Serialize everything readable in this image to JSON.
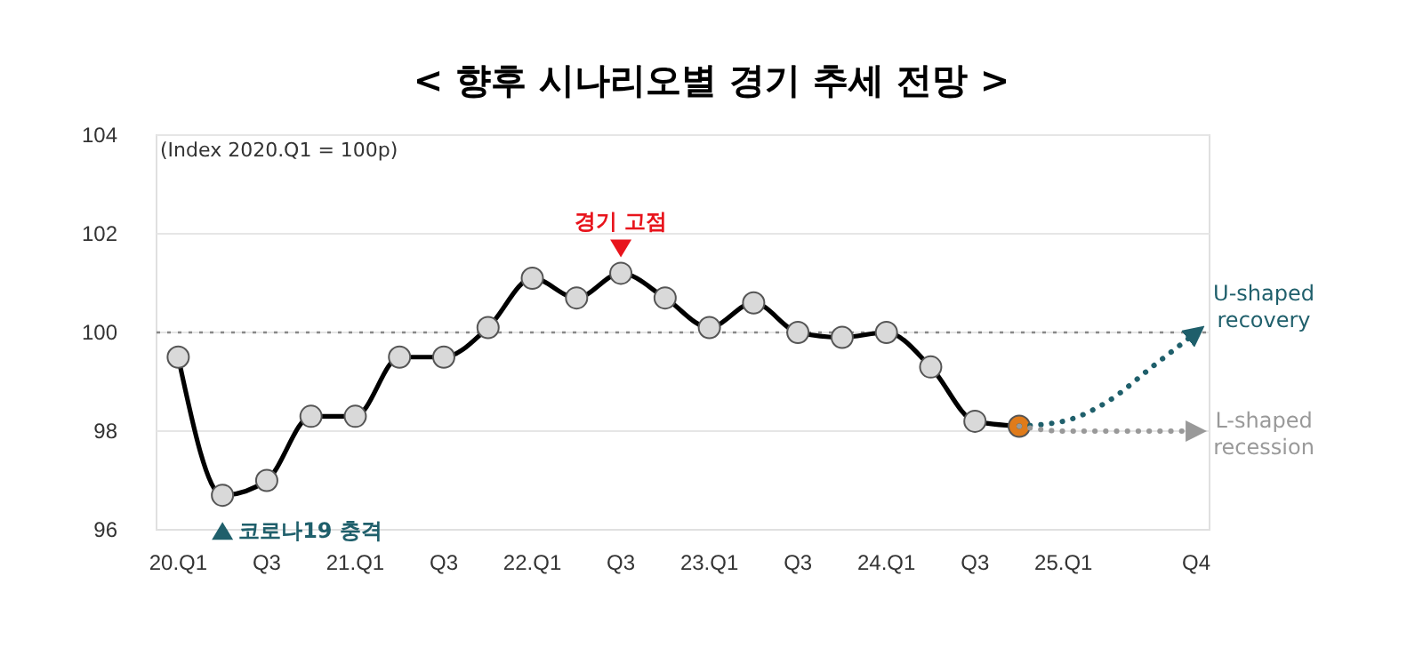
{
  "chart_data": {
    "type": "line",
    "title": "< 향후 시나리오별 경기 추세 전망 >",
    "annotations": [
      "(Index 2020.Q1 = 100p)",
      "경기 고점",
      "코로나19 충격"
    ],
    "categories": [
      "20.Q1",
      null,
      "Q3",
      null,
      "21.Q1",
      null,
      "Q3",
      null,
      "22.Q1",
      null,
      "Q3",
      null,
      "23.Q1",
      null,
      "Q3",
      null,
      "24.Q1",
      null,
      "Q3",
      null,
      "25.Q1",
      null,
      null,
      "Q4"
    ],
    "ylim": [
      96,
      104
    ],
    "yticks": [
      96,
      98,
      100,
      102,
      104
    ],
    "grid": "y",
    "ref_lines": [
      {
        "axis": "y",
        "value": 100,
        "color": "#888888",
        "line_style": "dotted"
      }
    ],
    "series": [
      {
        "color": "#000000",
        "marker": "circle",
        "line_style": "solid",
        "values": [
          99.5,
          96.7,
          97.0,
          98.3,
          98.3,
          99.5,
          99.5,
          100.1,
          101.1,
          100.7,
          101.2,
          100.7,
          100.1,
          100.6,
          100.0,
          99.9,
          100.0,
          99.3,
          98.2,
          98.1,
          null,
          null,
          null,
          null
        ],
        "colors": [
          "#d9d9d9",
          "#d9d9d9",
          "#d9d9d9",
          "#d9d9d9",
          "#d9d9d9",
          "#d9d9d9",
          "#d9d9d9",
          "#d9d9d9",
          "#d9d9d9",
          "#d9d9d9",
          "#d9d9d9",
          "#d9d9d9",
          "#d9d9d9",
          "#d9d9d9",
          "#d9d9d9",
          "#d9d9d9",
          "#d9d9d9",
          "#d9d9d9",
          "#d9d9d9",
          "#e07b1a",
          null,
          null,
          null,
          null
        ]
      },
      {
        "name": "U-shaped recovery",
        "color": "#1f5f6b",
        "marker": "none",
        "line_style": "dotted",
        "values": [
          null,
          null,
          null,
          null,
          null,
          null,
          null,
          null,
          null,
          null,
          null,
          null,
          null,
          null,
          null,
          null,
          null,
          null,
          null,
          98.1,
          98.2,
          98.6,
          99.3,
          100.0
        ]
      },
      {
        "name": "L-shaped recession",
        "color": "#999999",
        "marker": "none",
        "line_style": "dotted",
        "values": [
          null,
          null,
          null,
          null,
          null,
          null,
          null,
          null,
          null,
          null,
          null,
          null,
          null,
          null,
          null,
          null,
          null,
          null,
          null,
          98.1,
          98.0,
          98.0,
          98.0,
          98.0
        ]
      }
    ]
  }
}
